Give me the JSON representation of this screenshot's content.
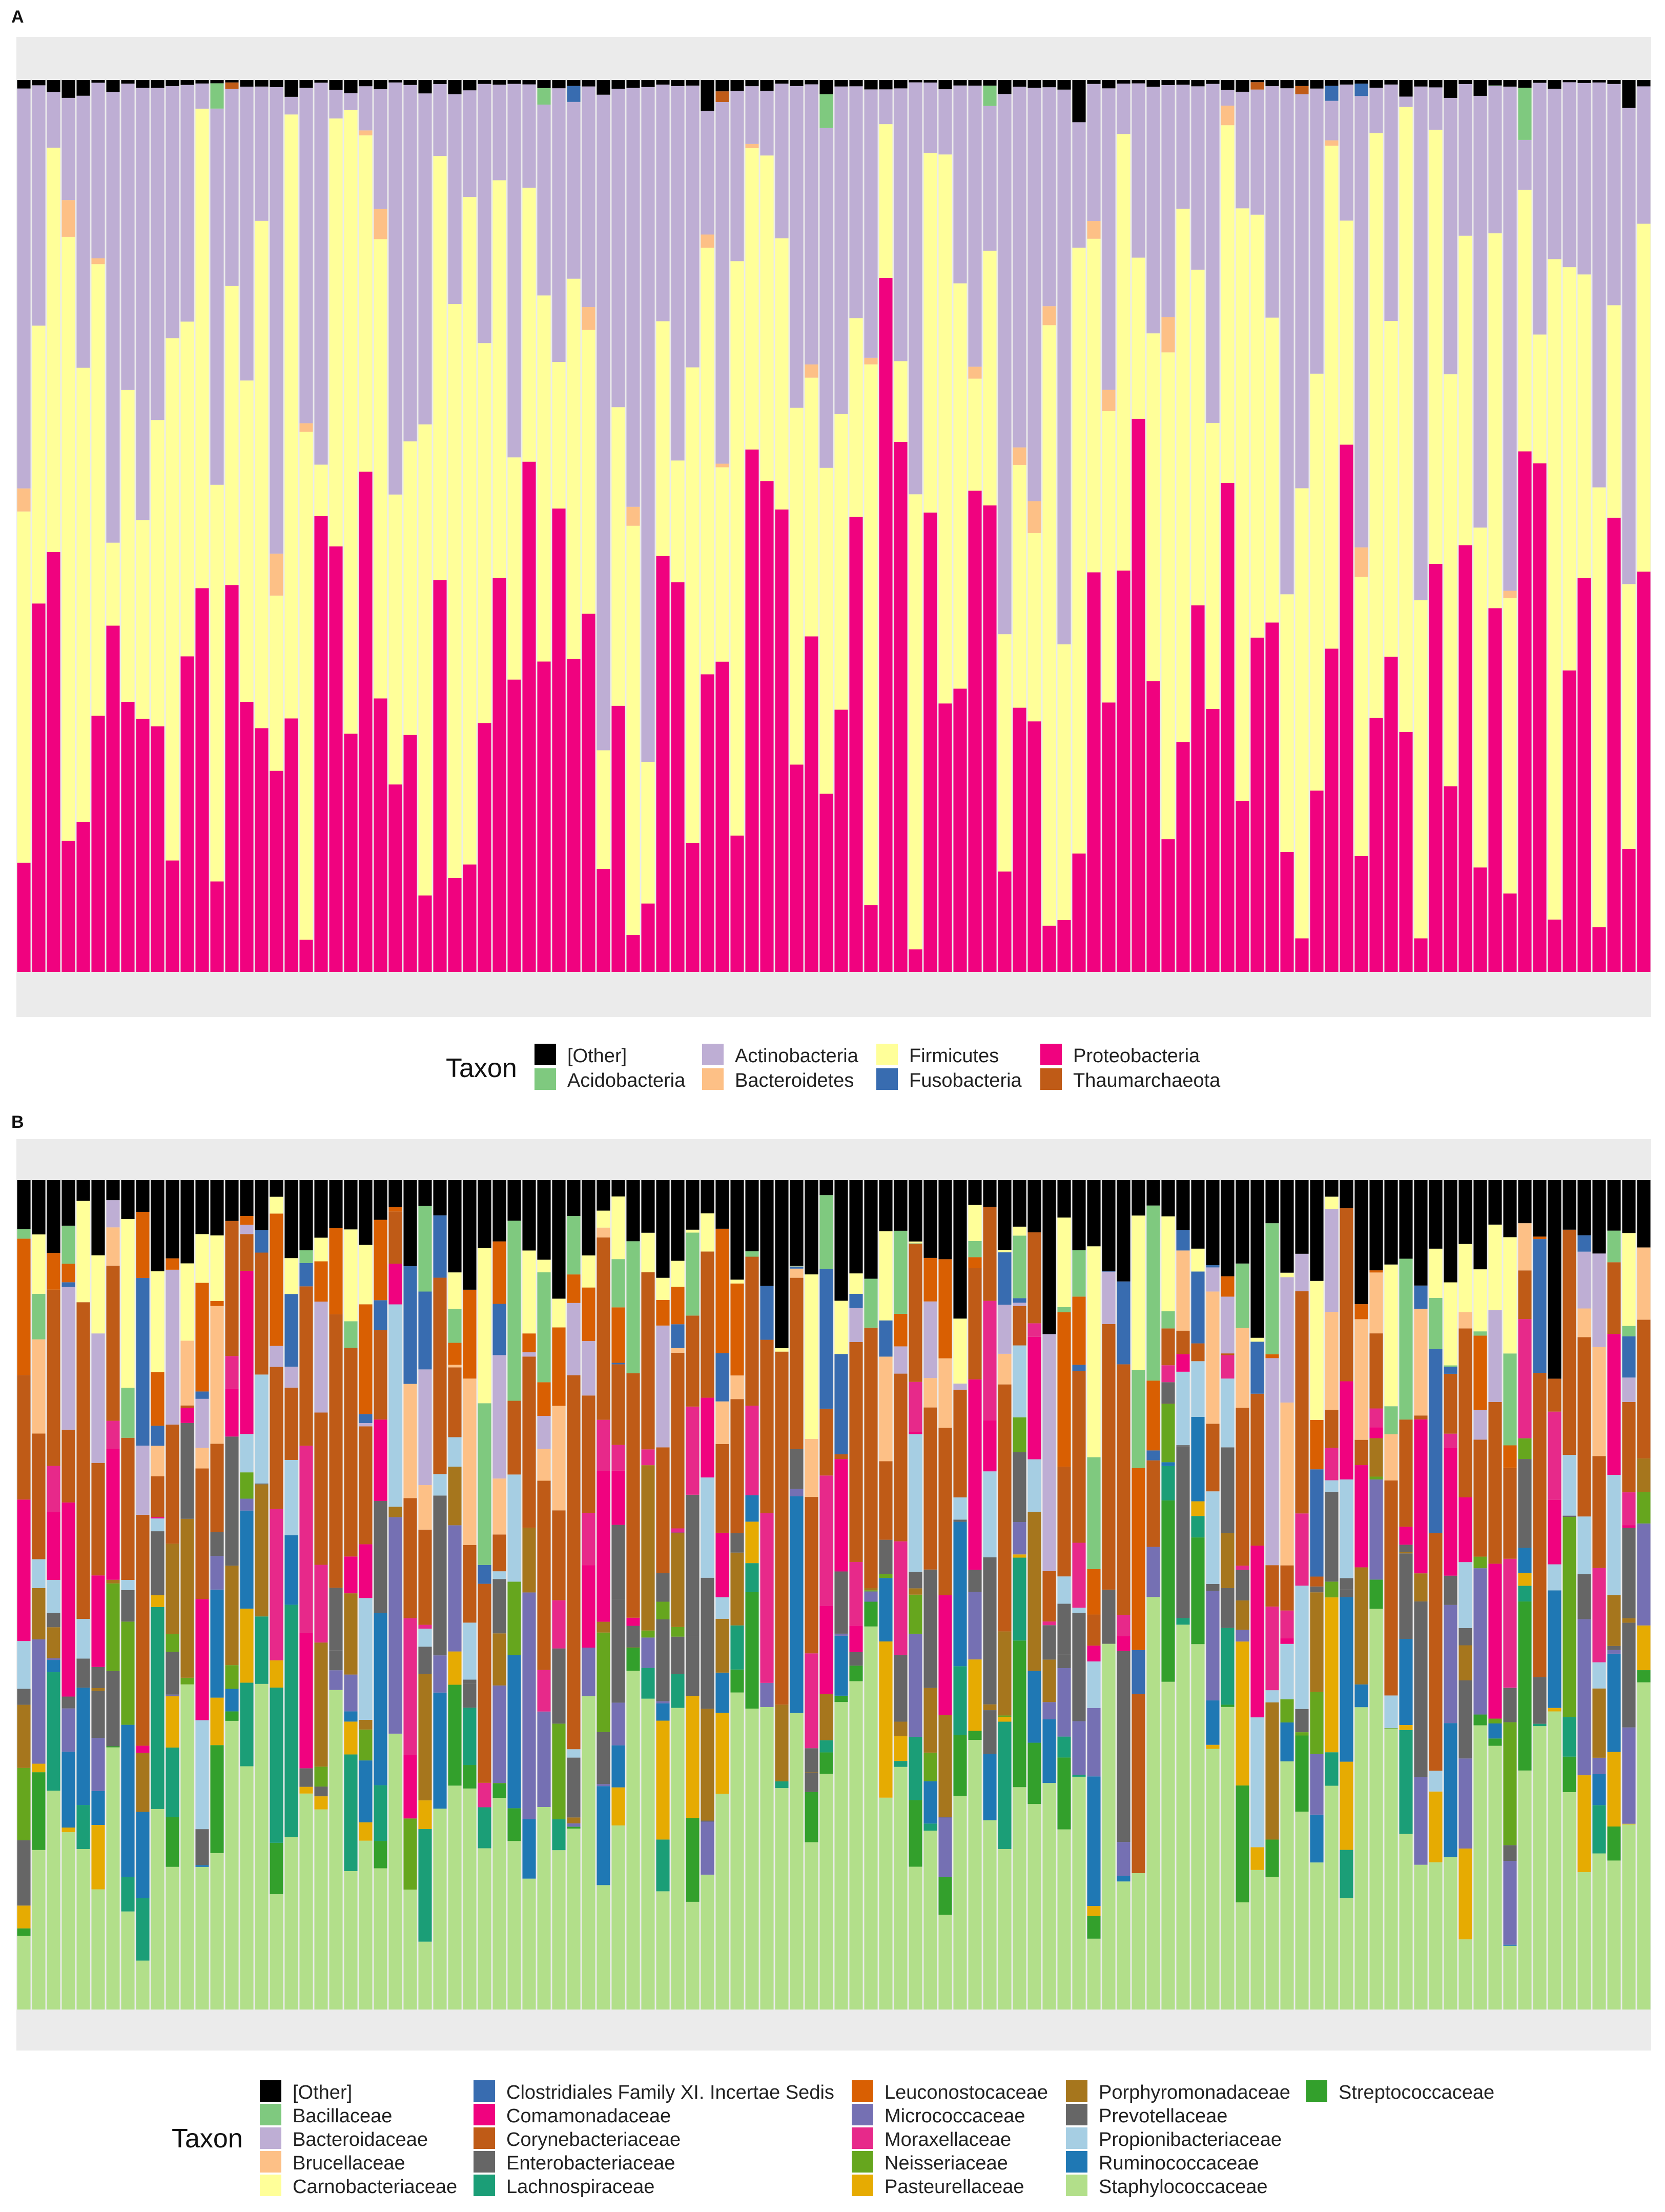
{
  "chart_data": [
    {
      "panel": "A",
      "type": "stacked_bar",
      "orientation": "vertical",
      "n_samples": 110,
      "ylim": [
        0,
        1
      ],
      "grid": true,
      "axis_tick_labels": "none",
      "legend_title": "Taxon",
      "legend_position": "bottom",
      "stack_order_bottom_to_top": [
        "Proteobacteria",
        "Firmicutes",
        "Bacteroidetes",
        "Actinobacteria",
        "Fusobacteria",
        "Thaumarchaeota",
        "Acidobacteria",
        "[Other]"
      ],
      "taxa": [
        {
          "name": "[Other]",
          "color": "#000000"
        },
        {
          "name": "Acidobacteria",
          "color": "#7FC97F"
        },
        {
          "name": "Actinobacteria",
          "color": "#BEAED4"
        },
        {
          "name": "Bacteroidetes",
          "color": "#FDC086"
        },
        {
          "name": "Firmicutes",
          "color": "#FFFF99"
        },
        {
          "name": "Fusobacteria",
          "color": "#386CB0"
        },
        {
          "name": "Proteobacteria",
          "color": "#F0027F"
        },
        {
          "name": "Thaumarchaeota",
          "color": "#BF5B17"
        }
      ]
    },
    {
      "panel": "B",
      "type": "stacked_bar",
      "orientation": "vertical",
      "n_samples": 110,
      "ylim": [
        0,
        1
      ],
      "grid": true,
      "axis_tick_labels": "none",
      "legend_title": "Taxon",
      "legend_position": "bottom",
      "stack_order_bottom_to_top": [
        "Staphylococcaceae",
        "Streptococcaceae",
        "Lachnospiraceae",
        "Pasteurellaceae",
        "Ruminococcaceae",
        "Micrococcaceae",
        "Enterobacteriaceae",
        "Neisseriaceae",
        "Porphyromonadaceae",
        "Prevotellaceae",
        "Propionibacteriaceae",
        "Comamonadaceae",
        "Moraxellaceae",
        "Corynebacteriaceae",
        "Brucellaceae",
        "Bacteroidaceae",
        "Clostridiales Family XI. Incertae Sedis",
        "Leuconostocaceae",
        "Bacillaceae",
        "Carnobacteriaceae",
        "[Other]"
      ],
      "taxa": [
        {
          "name": "[Other]",
          "color": "#000000"
        },
        {
          "name": "Bacillaceae",
          "color": "#7FC97F"
        },
        {
          "name": "Bacteroidaceae",
          "color": "#BEAED4"
        },
        {
          "name": "Brucellaceae",
          "color": "#FDC086"
        },
        {
          "name": "Carnobacteriaceae",
          "color": "#FFFF99"
        },
        {
          "name": "Clostridiales Family XI. Incertae Sedis",
          "color": "#386CB0"
        },
        {
          "name": "Comamonadaceae",
          "color": "#F0027F"
        },
        {
          "name": "Corynebacteriaceae",
          "color": "#BF5B17"
        },
        {
          "name": "Enterobacteriaceae",
          "color": "#666666"
        },
        {
          "name": "Lachnospiraceae",
          "color": "#1B9E77"
        },
        {
          "name": "Leuconostocaceae",
          "color": "#D95F02"
        },
        {
          "name": "Micrococcaceae",
          "color": "#7570B3"
        },
        {
          "name": "Moraxellaceae",
          "color": "#E7298A"
        },
        {
          "name": "Neisseriaceae",
          "color": "#66A61E"
        },
        {
          "name": "Pasteurellaceae",
          "color": "#E6AB02"
        },
        {
          "name": "Porphyromonadaceae",
          "color": "#A6761D"
        },
        {
          "name": "Prevotellaceae",
          "color": "#666666"
        },
        {
          "name": "Propionibacteriaceae",
          "color": "#A6CEE3"
        },
        {
          "name": "Ruminococcaceae",
          "color": "#1F78B4"
        },
        {
          "name": "Staphylococcaceae",
          "color": "#B2DF8A"
        },
        {
          "name": "Streptococcaceae",
          "color": "#33A02C"
        }
      ]
    }
  ]
}
